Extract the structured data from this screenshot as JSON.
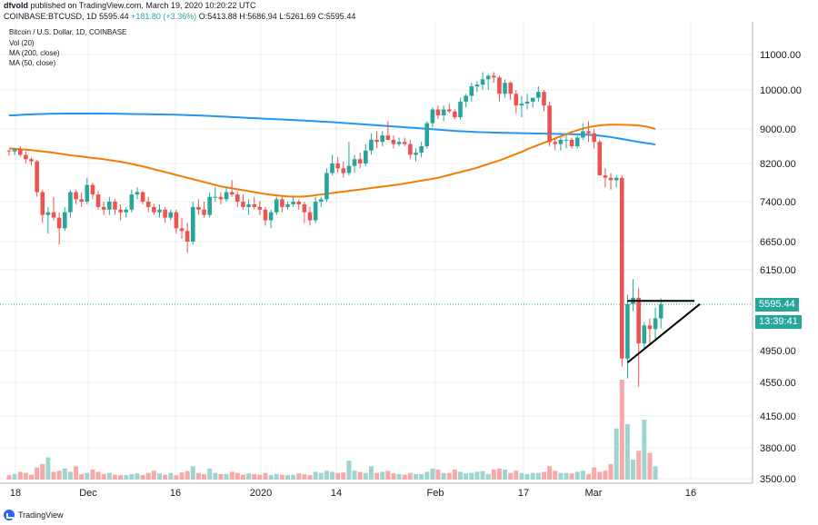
{
  "header": {
    "line1_user": "dfvold",
    "line1_text": "published on TradingView.com, March 19, 2020 10:20:22 UTC",
    "symbol": "COINBASE:BTCUSD, 1D",
    "last": "5595.44",
    "change": "+181.80 (+3.36%)",
    "ohlc": "O:5413.88 H:5686.94 L:5261.69 C:5595.44"
  },
  "indicators": {
    "title": "Bitcoin / U.S. Dollar, 1D, COINBASE",
    "vol": "Vol (20)",
    "ma200": "MA (200, close)",
    "ma50": "MA (50, close)"
  },
  "badges": {
    "price": "5595.44",
    "countdown": "13:39:41"
  },
  "footer": {
    "brand": "TradingView"
  },
  "colors": {
    "up": "#26a69a",
    "down": "#ef5350",
    "ma200": "#2196f3",
    "ma50": "#f57c00",
    "grid": "#e9ecf1"
  },
  "chart_data": {
    "type": "candlestick",
    "y_ticks": [
      "11000.00",
      "10000.00",
      "9000.00",
      "8200.00",
      "7400.00",
      "6650.00",
      "6150.00",
      "5595.44",
      "4950.00",
      "4550.00",
      "4150.00",
      "3800.00",
      "3500.00"
    ],
    "x_ticks": [
      "18",
      "Dec",
      "16",
      "2020",
      "14",
      "Feb",
      "17",
      "Mar",
      "16"
    ],
    "candles_ohlc": [
      [
        8500,
        8520,
        8380,
        8480
      ],
      [
        8480,
        8560,
        8400,
        8530
      ],
      [
        8530,
        8600,
        8350,
        8400
      ],
      [
        8400,
        8480,
        8200,
        8300
      ],
      [
        8300,
        8340,
        8150,
        8250
      ],
      [
        8250,
        8280,
        7500,
        7600
      ],
      [
        7600,
        7650,
        7000,
        7150
      ],
      [
        7150,
        7300,
        6800,
        7200
      ],
      [
        7200,
        7500,
        7050,
        7100
      ],
      [
        7100,
        7200,
        6600,
        6900
      ],
      [
        6900,
        7300,
        6850,
        7200
      ],
      [
        7200,
        7650,
        7100,
        7600
      ],
      [
        7600,
        7650,
        7350,
        7450
      ],
      [
        7450,
        7600,
        7300,
        7400
      ],
      [
        7400,
        7900,
        7350,
        7750
      ],
      [
        7750,
        7800,
        7450,
        7550
      ],
      [
        7550,
        7620,
        7250,
        7300
      ],
      [
        7300,
        7400,
        7150,
        7250
      ],
      [
        7250,
        7500,
        7150,
        7400
      ],
      [
        7400,
        7450,
        7150,
        7250
      ],
      [
        7250,
        7350,
        7050,
        7200
      ],
      [
        7200,
        7300,
        7100,
        7250
      ],
      [
        7250,
        7650,
        7200,
        7550
      ],
      [
        7550,
        7700,
        7450,
        7600
      ],
      [
        7600,
        7620,
        7350,
        7400
      ],
      [
        7400,
        7500,
        7200,
        7300
      ],
      [
        7300,
        7360,
        7150,
        7200
      ],
      [
        7200,
        7350,
        7100,
        7250
      ],
      [
        7250,
        7300,
        7000,
        7100
      ],
      [
        7100,
        7250,
        7050,
        7200
      ],
      [
        7200,
        7250,
        6800,
        6900
      ],
      [
        6900,
        7100,
        6700,
        6850
      ],
      [
        6850,
        7000,
        6450,
        6650
      ],
      [
        6650,
        7400,
        6600,
        7300
      ],
      [
        7300,
        7450,
        7150,
        7250
      ],
      [
        7250,
        7400,
        7100,
        7150
      ],
      [
        7150,
        7600,
        7100,
        7500
      ],
      [
        7500,
        7700,
        7400,
        7500
      ],
      [
        7500,
        7600,
        7350,
        7450
      ],
      [
        7450,
        7700,
        7400,
        7600
      ],
      [
        7600,
        7850,
        7500,
        7550
      ],
      [
        7550,
        7600,
        7300,
        7400
      ],
      [
        7400,
        7550,
        7250,
        7300
      ],
      [
        7300,
        7450,
        7150,
        7350
      ],
      [
        7350,
        7500,
        7250,
        7300
      ],
      [
        7300,
        7420,
        7150,
        7250
      ],
      [
        7250,
        7300,
        6950,
        7050
      ],
      [
        7050,
        7250,
        6900,
        7200
      ],
      [
        7200,
        7500,
        7150,
        7450
      ],
      [
        7450,
        7500,
        7200,
        7300
      ],
      [
        7300,
        7400,
        7250,
        7350
      ],
      [
        7350,
        7500,
        7300,
        7400
      ],
      [
        7400,
        7450,
        7250,
        7350
      ],
      [
        7350,
        7400,
        7000,
        7200
      ],
      [
        7200,
        7300,
        6950,
        7050
      ],
      [
        7050,
        7500,
        7000,
        7400
      ],
      [
        7400,
        7500,
        7300,
        7450
      ],
      [
        7450,
        8100,
        7400,
        8000
      ],
      [
        8000,
        8400,
        7950,
        8200
      ],
      [
        8200,
        8350,
        8000,
        8100
      ],
      [
        8100,
        8250,
        7900,
        8000
      ],
      [
        8000,
        8700,
        7950,
        8150
      ],
      [
        8150,
        8400,
        8000,
        8300
      ],
      [
        8300,
        8450,
        8100,
        8200
      ],
      [
        8200,
        8650,
        8150,
        8500
      ],
      [
        8500,
        8900,
        8400,
        8750
      ],
      [
        8750,
        8950,
        8550,
        8700
      ],
      [
        8700,
        8950,
        8600,
        8850
      ],
      [
        8850,
        9200,
        8750,
        8750
      ],
      [
        8750,
        8850,
        8550,
        8650
      ],
      [
        8650,
        8800,
        8600,
        8700
      ],
      [
        8700,
        8800,
        8600,
        8650
      ],
      [
        8650,
        8750,
        8300,
        8400
      ],
      [
        8400,
        8550,
        8250,
        8450
      ],
      [
        8450,
        8700,
        8350,
        8600
      ],
      [
        8600,
        9200,
        8550,
        9150
      ],
      [
        9150,
        9550,
        9050,
        9500
      ],
      [
        9500,
        9600,
        9250,
        9350
      ],
      [
        9350,
        9600,
        9200,
        9500
      ],
      [
        9500,
        9650,
        9400,
        9450
      ],
      [
        9450,
        9500,
        9250,
        9300
      ],
      [
        9300,
        9800,
        9250,
        9700
      ],
      [
        9700,
        9900,
        9550,
        9850
      ],
      [
        9850,
        10200,
        9700,
        10100
      ],
      [
        10100,
        10250,
        9950,
        10150
      ],
      [
        10150,
        10500,
        10000,
        10300
      ],
      [
        10300,
        10450,
        10000,
        10400
      ],
      [
        10400,
        10500,
        10200,
        10350
      ],
      [
        10350,
        10400,
        9700,
        9900
      ],
      [
        9900,
        10300,
        9800,
        10200
      ],
      [
        10200,
        10250,
        9750,
        9900
      ],
      [
        9900,
        10000,
        9400,
        9600
      ],
      [
        9600,
        9850,
        9300,
        9650
      ],
      [
        9650,
        9900,
        9500,
        9700
      ],
      [
        9700,
        9800,
        9550,
        9800
      ],
      [
        9800,
        10100,
        9700,
        9950
      ],
      [
        9950,
        10000,
        9450,
        9600
      ],
      [
        9600,
        9700,
        8600,
        8700
      ],
      [
        8700,
        8800,
        8500,
        8650
      ],
      [
        8650,
        8800,
        8500,
        8750
      ],
      [
        8750,
        8900,
        8550,
        8750
      ],
      [
        8750,
        8800,
        8550,
        8600
      ],
      [
        8600,
        8850,
        8550,
        8800
      ],
      [
        8800,
        9150,
        8750,
        8950
      ],
      [
        8950,
        9200,
        8700,
        8900
      ],
      [
        8900,
        9000,
        8550,
        8700
      ],
      [
        8700,
        8750,
        8000,
        7950
      ],
      [
        7950,
        8100,
        7700,
        7900
      ],
      [
        7900,
        8000,
        7650,
        7850
      ],
      [
        7850,
        7950,
        7700,
        7900
      ],
      [
        7900,
        7950,
        4750,
        4850
      ],
      [
        4850,
        5750,
        4600,
        5600
      ],
      [
        5600,
        6000,
        5500,
        5700
      ],
      [
        5700,
        5850,
        4500,
        5050
      ],
      [
        5050,
        5350,
        4950,
        5300
      ],
      [
        5300,
        5400,
        5050,
        5250
      ],
      [
        5250,
        5550,
        5100,
        5400
      ],
      [
        5400,
        5690,
        5260,
        5595
      ]
    ],
    "volume": [
      0.2,
      0.25,
      0.35,
      0.3,
      0.22,
      0.55,
      0.7,
      1.0,
      0.35,
      0.4,
      0.5,
      0.35,
      0.6,
      0.25,
      0.3,
      0.45,
      0.35,
      0.25,
      0.3,
      0.22,
      0.2,
      0.2,
      0.25,
      0.28,
      0.2,
      0.3,
      0.4,
      0.28,
      0.22,
      0.3,
      0.2,
      0.32,
      0.38,
      0.6,
      0.3,
      0.25,
      0.5,
      0.3,
      0.25,
      0.25,
      0.35,
      0.3,
      0.22,
      0.28,
      0.25,
      0.22,
      0.3,
      0.2,
      0.25,
      0.22,
      0.2,
      0.22,
      0.28,
      0.24,
      0.2,
      0.35,
      0.3,
      0.4,
      0.35,
      0.3,
      0.32,
      0.85,
      0.4,
      0.35,
      0.3,
      0.6,
      0.3,
      0.35,
      0.4,
      0.28,
      0.25,
      0.22,
      0.3,
      0.25,
      0.25,
      0.35,
      0.5,
      0.45,
      0.3,
      0.3,
      0.45,
      0.35,
      0.28,
      0.3,
      0.35,
      0.38,
      0.25,
      0.45,
      0.5,
      0.45,
      0.3,
      0.4,
      0.3,
      0.25,
      0.3,
      0.3,
      0.35,
      0.6,
      0.4,
      0.3,
      0.3,
      0.28,
      0.35,
      0.4,
      0.25,
      0.55,
      0.35,
      0.4,
      0.7,
      2.3,
      4.5,
      2.5,
      0.9,
      1.3,
      2.7,
      1.2,
      0.6
    ],
    "ma200": [
      9350,
      9350,
      9360,
      9370,
      9375,
      9380,
      9385,
      9390,
      9392,
      9393,
      9394,
      9395,
      9395,
      9395,
      9395,
      9395,
      9395,
      9394,
      9393,
      9392,
      9390,
      9388,
      9385,
      9382,
      9380,
      9378,
      9375,
      9372,
      9370,
      9368,
      9365,
      9360,
      9355,
      9350,
      9345,
      9340,
      9333,
      9326,
      9320,
      9313,
      9305,
      9298,
      9290,
      9283,
      9276,
      9270,
      9263,
      9256,
      9250,
      9243,
      9236,
      9230,
      9222,
      9215,
      9207,
      9200,
      9190,
      9182,
      9174,
      9165,
      9155,
      9145,
      9135,
      9125,
      9115,
      9105,
      9095,
      9085,
      9075,
      9065,
      9055,
      9045,
      9035,
      9025,
      9015,
      9005,
      8995,
      8985,
      8975,
      8965,
      8955,
      8948,
      8942,
      8936,
      8930,
      8925,
      8920,
      8915,
      8912,
      8910,
      8908,
      8905,
      8902,
      8900,
      8898,
      8895,
      8892,
      8890,
      8887,
      8885,
      8882,
      8880,
      8876,
      8872,
      8865,
      8857,
      8845,
      8830,
      8812,
      8790,
      8768,
      8745,
      8722,
      8700,
      8680,
      8660,
      8640
    ],
    "ma50": [
      8550,
      8540,
      8530,
      8520,
      8510,
      8495,
      8480,
      8465,
      8450,
      8430,
      8410,
      8390,
      8375,
      8360,
      8345,
      8330,
      8315,
      8300,
      8280,
      8260,
      8240,
      8215,
      8190,
      8165,
      8140,
      8110,
      8080,
      8050,
      8020,
      7990,
      7960,
      7930,
      7900,
      7870,
      7840,
      7810,
      7780,
      7750,
      7720,
      7700,
      7680,
      7660,
      7640,
      7620,
      7600,
      7580,
      7560,
      7545,
      7530,
      7520,
      7510,
      7505,
      7505,
      7510,
      7520,
      7535,
      7550,
      7565,
      7580,
      7595,
      7610,
      7625,
      7640,
      7655,
      7670,
      7685,
      7700,
      7715,
      7730,
      7745,
      7760,
      7780,
      7800,
      7820,
      7840,
      7860,
      7880,
      7900,
      7930,
      7960,
      7990,
      8020,
      8050,
      8080,
      8110,
      8150,
      8190,
      8230,
      8270,
      8320,
      8370,
      8420,
      8470,
      8530,
      8580,
      8630,
      8680,
      8730,
      8780,
      8830,
      8880,
      8930,
      8970,
      9010,
      9045,
      9070,
      9090,
      9105,
      9110,
      9110,
      9108,
      9105,
      9100,
      9090,
      9070,
      9040,
      9000
    ],
    "trendlines": [
      {
        "from": [
          111,
          5650
        ],
        "to": [
          123,
          5650
        ]
      },
      {
        "from": [
          111,
          4800
        ],
        "to": [
          124,
          5600
        ]
      }
    ]
  }
}
